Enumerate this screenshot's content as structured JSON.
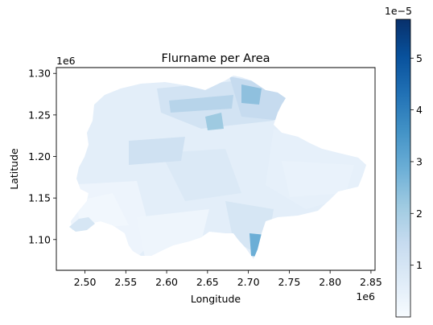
{
  "chart_data": {
    "type": "choropleth",
    "title": "Flurname per Area",
    "xlabel": "Longitude",
    "ylabel": "Latitude",
    "x_offset_label": "1e6",
    "y_offset_label": "1e6",
    "xlim": [
      2.465,
      2.855
    ],
    "ylim": [
      1.063,
      1.307
    ],
    "x_ticks": [
      2.5,
      2.55,
      2.6,
      2.65,
      2.7,
      2.75,
      2.8,
      2.85
    ],
    "x_tick_labels": [
      "2.50",
      "2.55",
      "2.60",
      "2.65",
      "2.70",
      "2.75",
      "2.80",
      "2.85"
    ],
    "y_ticks": [
      1.1,
      1.15,
      1.2,
      1.25,
      1.3
    ],
    "y_tick_labels": [
      "1.10",
      "1.15",
      "1.20",
      "1.25",
      "1.30"
    ],
    "colorbar": {
      "colormap": "Blues",
      "offset_label": "1e−5",
      "range": [
        0.0,
        5.75
      ],
      "ticks": [
        1,
        2,
        3,
        4,
        5
      ],
      "tick_labels": [
        "1",
        "2",
        "3",
        "4",
        "5"
      ]
    },
    "colors": {
      "low": "#f7fbff",
      "mid": "#9ecae1",
      "high": "#08306b"
    }
  }
}
